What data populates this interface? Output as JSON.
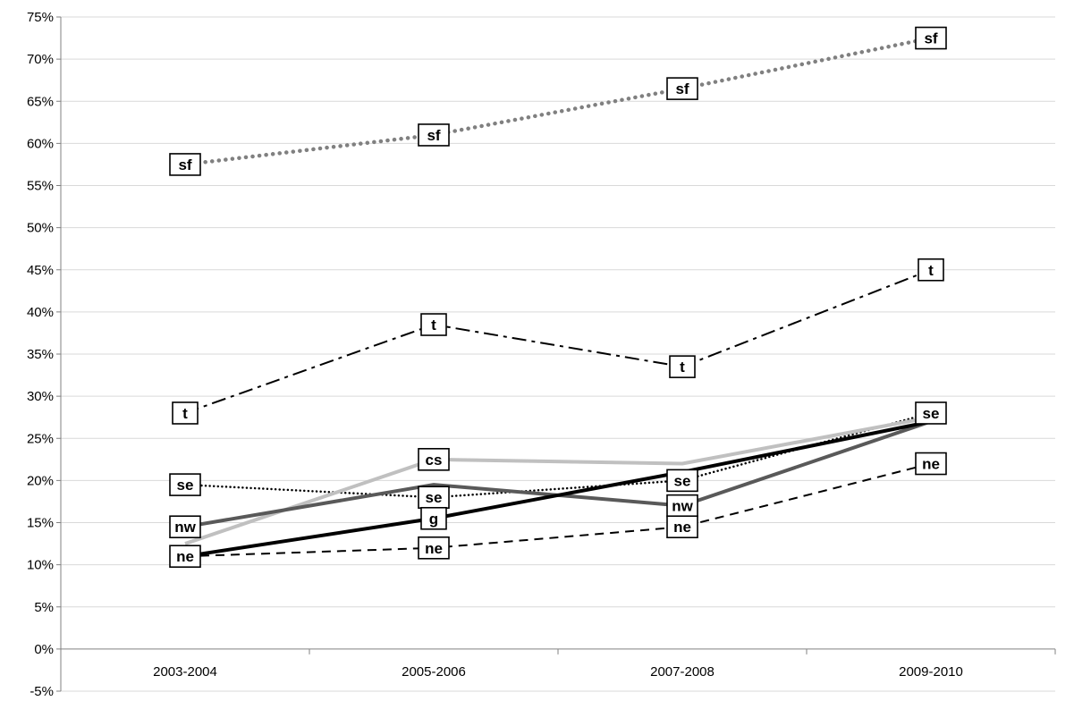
{
  "chart_data": {
    "type": "line",
    "title": "",
    "xlabel": "",
    "ylabel": "",
    "categories": [
      "2003-2004",
      "2005-2006",
      "2007-2008",
      "2009-2010"
    ],
    "ylim": [
      -5,
      75
    ],
    "yticks": [
      "-5%",
      "0%",
      "5%",
      "10%",
      "15%",
      "20%",
      "25%",
      "30%",
      "35%",
      "40%",
      "45%",
      "50%",
      "55%",
      "60%",
      "65%",
      "70%",
      "75%"
    ],
    "grid": true,
    "legend": "none",
    "series": [
      {
        "name": "sf",
        "values": [
          57.5,
          61,
          66.5,
          72.5
        ],
        "color": "#808080",
        "style": "dotted-thick",
        "labels": [
          true,
          true,
          true,
          true
        ]
      },
      {
        "name": "t",
        "values": [
          28,
          38.5,
          33.5,
          45
        ],
        "color": "#000000",
        "style": "dashdot",
        "labels": [
          true,
          true,
          true,
          true
        ]
      },
      {
        "name": "se",
        "values": [
          19.5,
          18,
          20,
          28
        ],
        "color": "#000000",
        "style": "dotted",
        "labels": [
          true,
          true,
          true,
          true
        ]
      },
      {
        "name": "cs",
        "values": [
          12.5,
          22.5,
          22,
          27.5
        ],
        "color": "#c0c0c0",
        "style": "solid",
        "labels": [
          false,
          true,
          false,
          false
        ]
      },
      {
        "name": "nw",
        "values": [
          14.5,
          19.5,
          17,
          27
        ],
        "color": "#595959",
        "style": "solid",
        "labels": [
          true,
          false,
          true,
          false
        ]
      },
      {
        "name": "g",
        "values": [
          11,
          15.5,
          21,
          27
        ],
        "color": "#000000",
        "style": "solid",
        "labels": [
          false,
          true,
          false,
          false
        ]
      },
      {
        "name": "ne",
        "values": [
          11,
          12,
          14.5,
          22
        ],
        "color": "#000000",
        "style": "dashed",
        "labels": [
          true,
          true,
          true,
          true
        ]
      }
    ]
  }
}
